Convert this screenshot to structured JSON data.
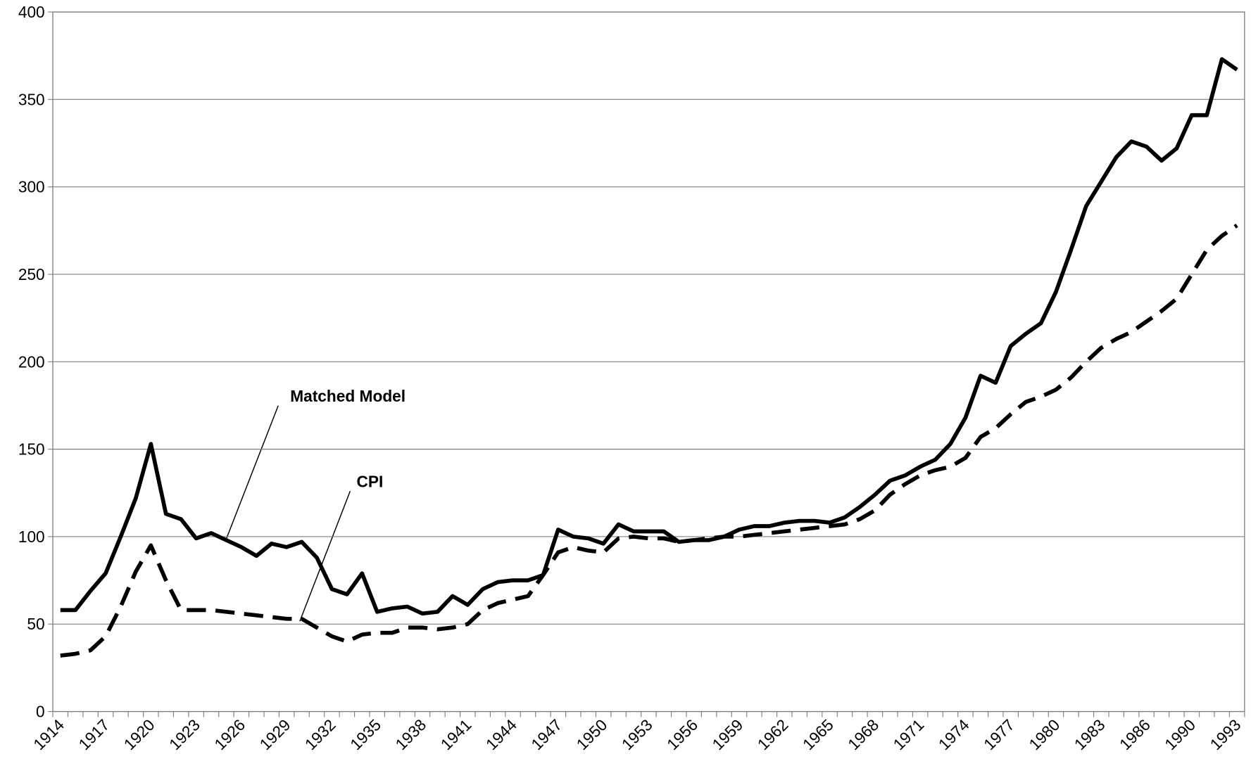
{
  "chart_data": {
    "type": "line",
    "categories": [
      "1914",
      null,
      null,
      "1917",
      null,
      null,
      "1920",
      null,
      null,
      "1923",
      null,
      null,
      "1926",
      null,
      null,
      "1929",
      null,
      null,
      "1932",
      null,
      null,
      "1935",
      null,
      null,
      "1938",
      null,
      null,
      "1941",
      null,
      null,
      "1944",
      null,
      null,
      "1947",
      null,
      null,
      "1950",
      null,
      null,
      "1953",
      null,
      null,
      "1956",
      null,
      null,
      "1959",
      null,
      null,
      "1962",
      null,
      null,
      "1965",
      null,
      null,
      "1968",
      null,
      null,
      "1971",
      null,
      null,
      "1974",
      null,
      null,
      "1977",
      null,
      null,
      "1980",
      null,
      null,
      "1983",
      null,
      null,
      "1986",
      null,
      null,
      "1990",
      null,
      null,
      "1993"
    ],
    "series": [
      {
        "name": "Matched Model",
        "color": "#000000",
        "dash": false,
        "values": [
          58,
          58,
          69,
          79,
          100,
          122,
          153,
          113,
          110,
          99,
          102,
          98,
          94,
          89,
          96,
          94,
          97,
          88,
          70,
          67,
          79,
          57,
          59,
          60,
          56,
          57,
          66,
          61,
          70,
          74,
          75,
          75,
          78,
          104,
          100,
          99,
          96,
          107,
          103,
          103,
          103,
          97,
          98,
          98,
          100,
          104,
          106,
          106,
          108,
          109,
          109,
          108,
          111,
          117,
          124,
          132,
          135,
          140,
          144,
          153,
          168,
          192,
          188,
          209,
          216,
          222,
          240,
          264,
          289,
          303,
          317,
          326,
          323,
          315,
          322,
          341,
          341,
          373,
          367
        ]
      },
      {
        "name": "CPI",
        "color": "#000000",
        "dash": true,
        "values": [
          32,
          33,
          35,
          43,
          60,
          80,
          95,
          75,
          58,
          58,
          58,
          57,
          56,
          55,
          54,
          53,
          53,
          48,
          43,
          40,
          44,
          45,
          45,
          48,
          48,
          47,
          48,
          50,
          58,
          62,
          64,
          66,
          78,
          91,
          94,
          92,
          91,
          99,
          100,
          99,
          99,
          97,
          98,
          99,
          100,
          100,
          101,
          102,
          103,
          104,
          105,
          106,
          107,
          110,
          115,
          124,
          130,
          135,
          138,
          140,
          145,
          157,
          162,
          170,
          177,
          180,
          184,
          191,
          200,
          208,
          213,
          217,
          223,
          229,
          236,
          250,
          264,
          272,
          278
        ]
      }
    ],
    "ylim": [
      0,
      400
    ],
    "yticks": [
      0,
      50,
      100,
      150,
      200,
      250,
      300,
      350,
      400
    ],
    "grid": true
  }
}
